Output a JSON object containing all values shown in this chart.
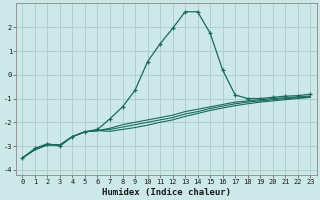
{
  "xlabel": "Humidex (Indice chaleur)",
  "background_color": "#cce8e8",
  "grid_color": "#aacccc",
  "line_color": "#1a6b5a",
  "x_values": [
    0,
    1,
    2,
    3,
    4,
    5,
    6,
    7,
    8,
    9,
    10,
    11,
    12,
    13,
    14,
    15,
    16,
    17,
    18,
    19,
    20,
    21,
    22,
    23
  ],
  "main_series": [
    -3.5,
    -3.1,
    -2.9,
    -3.0,
    -2.6,
    -2.4,
    -2.3,
    -1.85,
    -1.35,
    -0.65,
    0.55,
    1.3,
    1.95,
    2.65,
    2.65,
    1.75,
    0.2,
    -0.85,
    -1.0,
    -1.0,
    -0.95,
    -0.9,
    -0.88,
    -0.82
  ],
  "linear_series": [
    [
      -3.5,
      -3.15,
      -2.95,
      -2.95,
      -2.6,
      -2.4,
      -2.35,
      -2.25,
      -2.1,
      -2.0,
      -1.9,
      -1.8,
      -1.7,
      -1.55,
      -1.45,
      -1.35,
      -1.25,
      -1.15,
      -1.1,
      -1.05,
      -1.0,
      -0.97,
      -0.93,
      -0.9
    ],
    [
      -3.5,
      -3.15,
      -2.95,
      -2.95,
      -2.6,
      -2.4,
      -2.35,
      -2.3,
      -2.2,
      -2.1,
      -2.0,
      -1.9,
      -1.8,
      -1.65,
      -1.55,
      -1.42,
      -1.32,
      -1.22,
      -1.15,
      -1.1,
      -1.05,
      -1.0,
      -0.97,
      -0.93
    ],
    [
      -3.5,
      -3.15,
      -2.95,
      -2.95,
      -2.6,
      -2.4,
      -2.35,
      -2.38,
      -2.3,
      -2.22,
      -2.12,
      -2.0,
      -1.9,
      -1.75,
      -1.63,
      -1.5,
      -1.4,
      -1.3,
      -1.22,
      -1.15,
      -1.1,
      -1.05,
      -1.0,
      -0.95
    ]
  ],
  "xlim": [
    -0.5,
    23.5
  ],
  "ylim": [
    -4.2,
    3.0
  ],
  "yticks": [
    -4,
    -3,
    -2,
    -1,
    0,
    1,
    2
  ],
  "xticks": [
    0,
    1,
    2,
    3,
    4,
    5,
    6,
    7,
    8,
    9,
    10,
    11,
    12,
    13,
    14,
    15,
    16,
    17,
    18,
    19,
    20,
    21,
    22,
    23
  ]
}
